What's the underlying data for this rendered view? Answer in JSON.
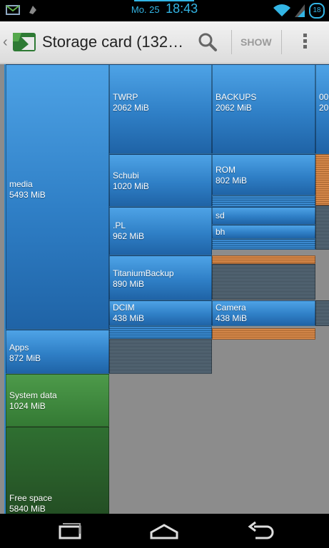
{
  "status_bar": {
    "date": "Mo. 25",
    "time": "18:43",
    "notification_count": "18",
    "accent": "#33b5e5"
  },
  "action_bar": {
    "title": "Storage card (132…",
    "show_label": "SHOW",
    "icons": [
      "app-logo-icon",
      "search-icon",
      "overflow-menu-icon"
    ]
  },
  "treemap": {
    "tiles": [
      {
        "name": "media",
        "size": "5493 MiB"
      },
      {
        "name": "Apps",
        "size": "872 MiB"
      },
      {
        "name": "System data",
        "size": "1024 MiB"
      },
      {
        "name": "Free space",
        "size": "5840 MiB"
      },
      {
        "name": "TWRP",
        "size": "2062 MiB"
      },
      {
        "name": "BACKUPS",
        "size": "2062 MiB"
      },
      {
        "name": "Schubi",
        "size": "1020 MiB"
      },
      {
        "name": "ROM",
        "size": "802 MiB"
      },
      {
        "name": ".PL",
        "size": "962 MiB"
      },
      {
        "name": "sd",
        "size": ""
      },
      {
        "name": "bh",
        "size": ""
      },
      {
        "name": "TitaniumBackup",
        "size": "890 MiB"
      },
      {
        "name": "DCIM",
        "size": "438 MiB"
      },
      {
        "name": "Camera",
        "size": "438 MiB"
      },
      {
        "name": "00…",
        "size": "20…"
      }
    ]
  },
  "nav_bar": {
    "icons": [
      "recent-apps-icon",
      "home-icon",
      "back-icon"
    ]
  }
}
